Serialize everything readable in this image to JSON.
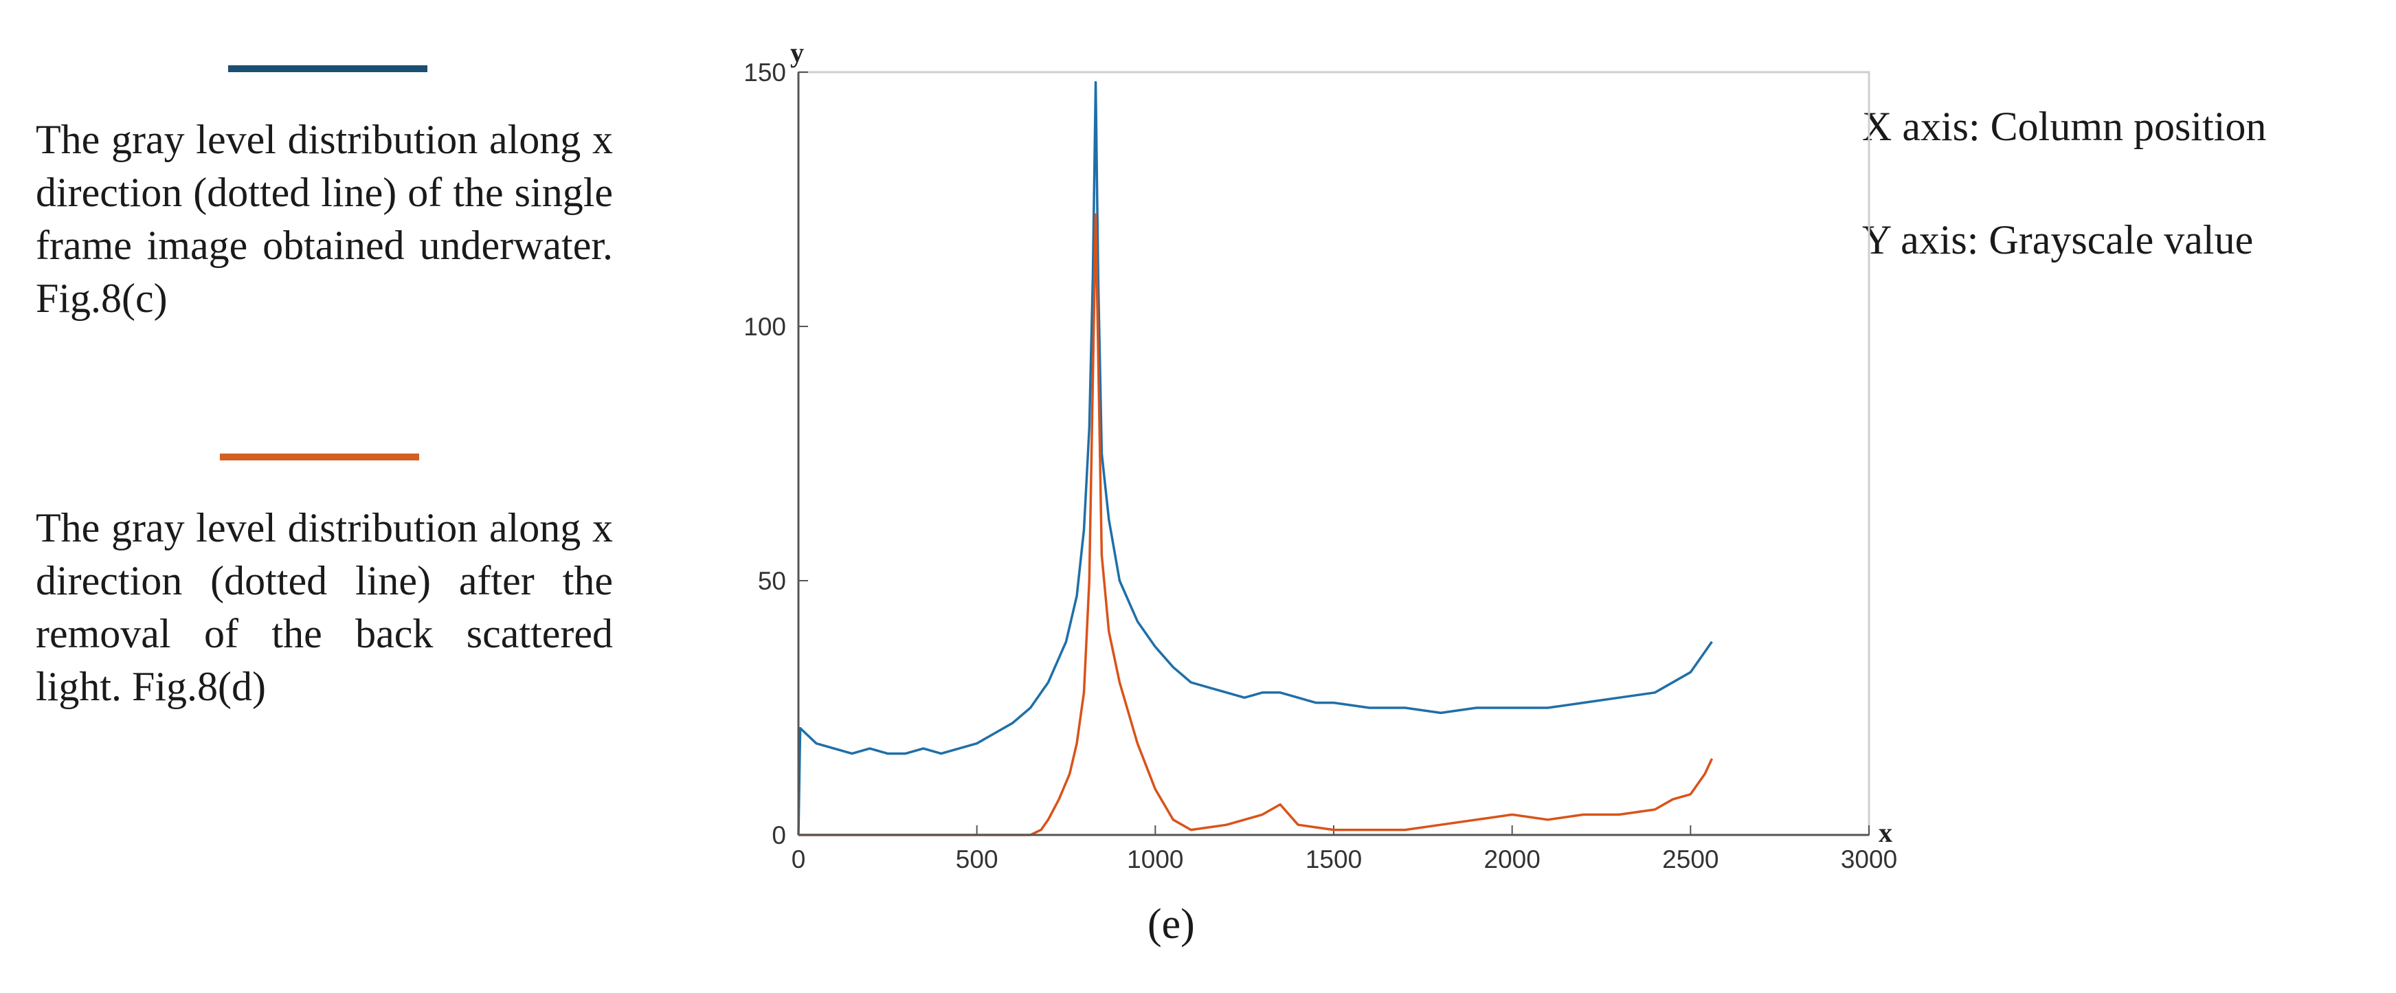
{
  "legend": [
    {
      "color": "#1f6fa8",
      "swatch_color": "#1b4f72",
      "text": "The gray level distribution along x direction (dotted line) of the single frame image obtained underwater. Fig.8(c)"
    },
    {
      "color": "#d95319",
      "swatch_color": "#d35f21",
      "text": "The gray level distribution along x direction (dotted line) after the removal of the back scattered light. Fig.8(d)"
    }
  ],
  "axis_notes": {
    "x": "X axis: Column position",
    "y": "Y axis: Grayscale value"
  },
  "caption": "(e)",
  "chart_data": {
    "type": "line",
    "title": "",
    "xlabel": "x",
    "ylabel": "y",
    "xlim": [
      0,
      3000
    ],
    "ylim": [
      0,
      150
    ],
    "xticks": [
      0,
      500,
      1000,
      1500,
      2000,
      2500,
      3000
    ],
    "yticks": [
      0,
      50,
      100,
      150
    ],
    "grid": false,
    "series": [
      {
        "name": "Single frame underwater (Fig.8(c))",
        "color": "#1f6fa8",
        "points": [
          [
            0,
            0
          ],
          [
            5,
            21
          ],
          [
            50,
            18
          ],
          [
            100,
            17
          ],
          [
            150,
            16
          ],
          [
            200,
            17
          ],
          [
            250,
            16
          ],
          [
            300,
            16
          ],
          [
            350,
            17
          ],
          [
            400,
            16
          ],
          [
            450,
            17
          ],
          [
            500,
            18
          ],
          [
            550,
            20
          ],
          [
            600,
            22
          ],
          [
            650,
            25
          ],
          [
            700,
            30
          ],
          [
            750,
            38
          ],
          [
            780,
            47
          ],
          [
            800,
            60
          ],
          [
            815,
            80
          ],
          [
            825,
            110
          ],
          [
            833,
            148
          ],
          [
            840,
            110
          ],
          [
            850,
            75
          ],
          [
            870,
            62
          ],
          [
            900,
            50
          ],
          [
            950,
            42
          ],
          [
            1000,
            37
          ],
          [
            1050,
            33
          ],
          [
            1100,
            30
          ],
          [
            1150,
            29
          ],
          [
            1200,
            28
          ],
          [
            1250,
            27
          ],
          [
            1300,
            28
          ],
          [
            1350,
            28
          ],
          [
            1400,
            27
          ],
          [
            1450,
            26
          ],
          [
            1500,
            26
          ],
          [
            1600,
            25
          ],
          [
            1700,
            25
          ],
          [
            1800,
            24
          ],
          [
            1900,
            25
          ],
          [
            2000,
            25
          ],
          [
            2100,
            25
          ],
          [
            2200,
            26
          ],
          [
            2300,
            27
          ],
          [
            2400,
            28
          ],
          [
            2500,
            32
          ],
          [
            2540,
            36
          ],
          [
            2560,
            38
          ]
        ]
      },
      {
        "name": "After removal of back scattered light (Fig.8(d))",
        "color": "#d95319",
        "points": [
          [
            0,
            0
          ],
          [
            600,
            0
          ],
          [
            650,
            0
          ],
          [
            680,
            1
          ],
          [
            700,
            3
          ],
          [
            730,
            7
          ],
          [
            760,
            12
          ],
          [
            780,
            18
          ],
          [
            800,
            28
          ],
          [
            815,
            50
          ],
          [
            825,
            90
          ],
          [
            833,
            122
          ],
          [
            840,
            95
          ],
          [
            850,
            55
          ],
          [
            870,
            40
          ],
          [
            900,
            30
          ],
          [
            950,
            18
          ],
          [
            1000,
            9
          ],
          [
            1050,
            3
          ],
          [
            1100,
            1
          ],
          [
            1200,
            2
          ],
          [
            1300,
            4
          ],
          [
            1350,
            6
          ],
          [
            1400,
            2
          ],
          [
            1500,
            1
          ],
          [
            1600,
            1
          ],
          [
            1700,
            1
          ],
          [
            1800,
            2
          ],
          [
            1900,
            3
          ],
          [
            2000,
            4
          ],
          [
            2100,
            3
          ],
          [
            2200,
            4
          ],
          [
            2300,
            4
          ],
          [
            2400,
            5
          ],
          [
            2450,
            7
          ],
          [
            2500,
            8
          ],
          [
            2540,
            12
          ],
          [
            2560,
            15
          ]
        ]
      }
    ]
  }
}
